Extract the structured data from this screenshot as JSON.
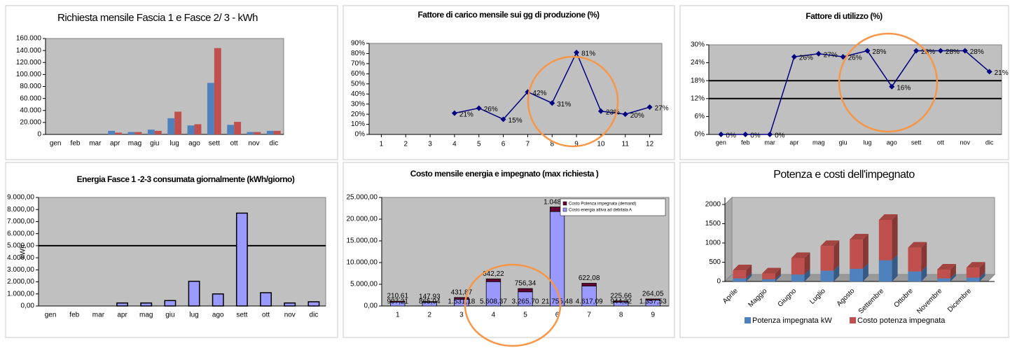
{
  "chart_data": [
    {
      "type": "bar",
      "title": "Richiesta mensile Fascia 1 e Fasce 2/ 3 - kWh",
      "categories": [
        "gen",
        "feb",
        "mar",
        "apr",
        "mag",
        "giu",
        "lug",
        "ago",
        "sett",
        "ott",
        "nov",
        "dic"
      ],
      "series": [
        {
          "color": "#4f81bd",
          "values": [
            0,
            0,
            0,
            6000,
            4000,
            8000,
            27000,
            15000,
            86000,
            16000,
            4000,
            6000
          ]
        },
        {
          "color": "#c0504d",
          "values": [
            0,
            0,
            0,
            3000,
            4000,
            6000,
            38000,
            17000,
            144000,
            21000,
            4000,
            6000
          ]
        }
      ],
      "ylim": [
        0,
        160000
      ],
      "yticks": [
        0,
        {
          "value": 20000,
          "label": "20.000"
        },
        {
          "value": 40000,
          "label": "40.000"
        },
        {
          "value": 60000,
          "label": "60.000"
        },
        {
          "value": 80000,
          "label": "80.000"
        },
        {
          "value": 100000,
          "label": "100.000"
        },
        {
          "value": 120000,
          "label": "120.000"
        },
        {
          "value": 140000,
          "label": "140.000"
        },
        {
          "value": 160000,
          "label": "160.000"
        }
      ],
      "background": "#c0c0c0",
      "grid": false
    },
    {
      "type": "line",
      "title": "Fattore di carico mensile sui gg di produzione (%)",
      "x": [
        1,
        2,
        3,
        4,
        5,
        6,
        7,
        8,
        9,
        10,
        11,
        12
      ],
      "values": [
        null,
        null,
        null,
        21,
        26,
        15,
        42,
        31,
        81,
        23,
        20,
        27
      ],
      "value_labels": [
        null,
        null,
        null,
        "21%",
        "26%",
        "15%",
        "42%",
        "31%",
        "81%",
        "23%",
        "20%",
        "27%"
      ],
      "color": "#000080",
      "xlim": [
        0.5,
        12.5
      ],
      "xticks": [
        1,
        2,
        3,
        4,
        5,
        6,
        7,
        8,
        9,
        10,
        11,
        12
      ],
      "ylim": [
        0,
        90
      ],
      "yticks": [
        {
          "value": 0,
          "label": "0%"
        },
        {
          "value": 10,
          "label": "10%"
        },
        {
          "value": 20,
          "label": "20%"
        },
        {
          "value": 30,
          "label": "30%"
        },
        {
          "value": 40,
          "label": "40%"
        },
        {
          "value": 50,
          "label": "50%"
        },
        {
          "value": 60,
          "label": "60%"
        },
        {
          "value": 70,
          "label": "70%"
        },
        {
          "value": 80,
          "label": "80%"
        },
        {
          "value": 90,
          "label": "90%"
        }
      ],
      "background": "#c0c0c0",
      "grid": false
    },
    {
      "type": "line",
      "title": "Fattore di utilizzo (%)",
      "categories": [
        "gen",
        "feb",
        "mar",
        "apr",
        "mag",
        "giu",
        "lug",
        "ago",
        "sett",
        "ott",
        "nov",
        "dic"
      ],
      "values": [
        0,
        0,
        0,
        26,
        27,
        26,
        28,
        16,
        28,
        28,
        28,
        21
      ],
      "value_labels": [
        "0%",
        "0%",
        "0%",
        "26%",
        "27%",
        "26%",
        "28%",
        "16%",
        "28%",
        "28%",
        "28%",
        "21%"
      ],
      "color": "#000080",
      "ylim": [
        0,
        30
      ],
      "yticks": [
        {
          "value": 0,
          "label": "0%"
        },
        {
          "value": 6,
          "label": "6%"
        },
        {
          "value": 12,
          "label": "12%"
        },
        {
          "value": 18,
          "label": "18%"
        },
        {
          "value": 24,
          "label": "24%"
        },
        {
          "value": 30,
          "label": "30%"
        }
      ],
      "hlines": [
        12,
        18
      ],
      "background": "#c0c0c0",
      "grid": false
    },
    {
      "type": "bar",
      "title": "Energia Fasce 1 -2-3 consumata giornalmente (kWh/giorno)",
      "y_label": "kWh",
      "categories": [
        "gen",
        "feb",
        "mar",
        "apr",
        "mag",
        "giu",
        "lug",
        "ago",
        "sett",
        "ott",
        "nov",
        "dic"
      ],
      "series": [
        {
          "color": "#9999ff",
          "values": [
            0,
            0,
            0,
            250,
            250,
            450,
            2050,
            1000,
            7700,
            1100,
            250,
            350
          ]
        }
      ],
      "ylim": [
        0,
        9000
      ],
      "yticks": [
        {
          "value": 0,
          "label": "0,00"
        },
        {
          "value": 1000,
          "label": "1.000,00"
        },
        {
          "value": 2000,
          "label": "2.000,00"
        },
        {
          "value": 3000,
          "label": "3.000,00"
        },
        {
          "value": 4000,
          "label": "4.000,00"
        },
        {
          "value": 5000,
          "label": "5.000,00"
        },
        {
          "value": 6000,
          "label": "6.000,00"
        },
        {
          "value": 7000,
          "label": "7.000,00"
        },
        {
          "value": 8000,
          "label": "8.000,00"
        },
        {
          "value": 9000,
          "label": "9.000,00"
        }
      ],
      "hlines": [
        5000
      ],
      "background": "#c0c0c0",
      "grid": false
    },
    {
      "type": "bar",
      "stacked": true,
      "title": "Costo mensile energia e impegnato (max richiesta )",
      "categories": [
        "1",
        "2",
        "3",
        "4",
        "5",
        "6",
        "7",
        "8",
        "9"
      ],
      "series": [
        {
          "name": "Costo energia attiva ad debitata A",
          "color": "#9999ff",
          "values": [
            907.21,
            865.04,
            1531.18,
            5608.37,
            3265.7,
            21755.48,
            4617.09,
            944.32,
            1357.53
          ],
          "value_labels": [
            "907,21",
            "865,04",
            "1.531,18",
            "5.608,37",
            "3.265,70",
            "21.755,48",
            "4.617,09",
            "944,32",
            "1.357,53"
          ]
        },
        {
          "name": "Costo Potenza impegnata (demand)",
          "color": "#660033",
          "values": [
            210.61,
            147.93,
            431.87,
            642.22,
            756.34,
            1048.21,
            622.08,
            225.66,
            264.05
          ],
          "value_labels": [
            "210,61",
            "147,93",
            "431,87",
            "642,22",
            "756,34",
            "1.048,21",
            "622,08",
            "225,66",
            "264,05"
          ]
        }
      ],
      "ylim": [
        0,
        25000
      ],
      "yticks": [
        {
          "value": 0,
          "label": "0,00"
        },
        {
          "value": 5000,
          "label": "5.000,00"
        },
        {
          "value": 10000,
          "label": "10.000,00"
        },
        {
          "value": 15000,
          "label": "15.000,00"
        },
        {
          "value": 20000,
          "label": "20.000,00"
        },
        {
          "value": 25000,
          "label": "25.000,00"
        }
      ],
      "legend": "top-right",
      "background": "#c0c0c0",
      "grid": false
    },
    {
      "type": "bar",
      "stacked": true,
      "three_d": true,
      "title": "Potenza e costi dell'impegnato",
      "categories": [
        "Aprile",
        "Maggio",
        "Giugno",
        "Luglio",
        "Agosto",
        "Settembre",
        "Ottobre",
        "Novembre",
        "Dicembre"
      ],
      "series": [
        {
          "name": "Potenza impegnata kW",
          "color": "#4f81bd",
          "values": [
            80,
            60,
            180,
            280,
            330,
            550,
            260,
            80,
            100
          ]
        },
        {
          "name": "Costo potenza impegnata",
          "color": "#c0504d",
          "values": [
            210,
            150,
            430,
            640,
            760,
            1050,
            620,
            230,
            260
          ]
        }
      ],
      "ylim": [
        0,
        2000
      ],
      "yticks": [
        0,
        500,
        1000,
        1500,
        2000
      ],
      "legend": "bottom",
      "background": "#c0c0c0",
      "grid": false
    }
  ]
}
